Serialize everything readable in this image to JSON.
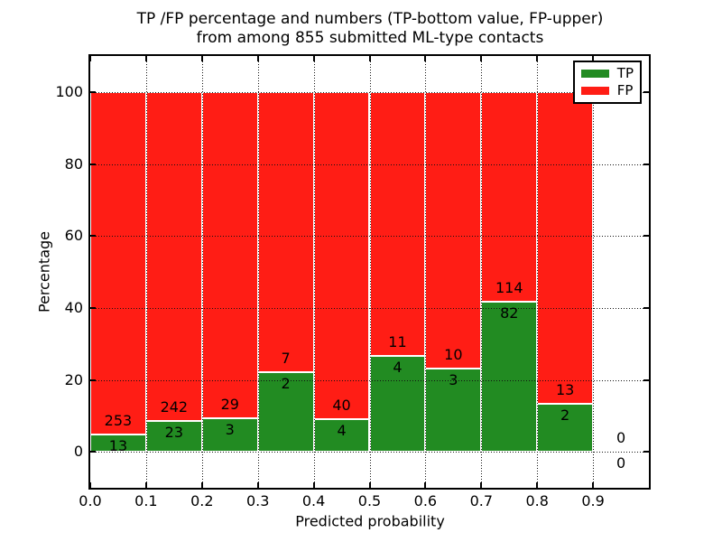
{
  "figure": {
    "title_line1": "TP /FP percentage and numbers (TP-bottom value, FP-upper)",
    "title_line2": "from among 855 submitted ML-type contacts",
    "xlabel": "Predicted probability",
    "ylabel": "Percentage",
    "background_color": "#ffffff"
  },
  "legend": {
    "position": "upper-right",
    "entries": [
      {
        "label": "TP",
        "color": "#228b22"
      },
      {
        "label": "FP",
        "color": "#ff1d15"
      }
    ]
  },
  "chart_data": {
    "type": "bar",
    "stacked": true,
    "normalized_to_percent": 100,
    "title": "TP /FP percentage and numbers (TP-bottom value, FP-upper) from among 855 submitted ML-type contacts",
    "xlabel": "Predicted probability",
    "ylabel": "Percentage",
    "bin_width": 0.1,
    "bin_starts": [
      0.0,
      0.1,
      0.2,
      0.3,
      0.4,
      0.5,
      0.6,
      0.7,
      0.8,
      0.9
    ],
    "series": [
      {
        "name": "TP",
        "color": "#228b22",
        "counts": [
          13,
          23,
          3,
          2,
          4,
          4,
          3,
          82,
          2,
          0
        ]
      },
      {
        "name": "FP",
        "color": "#ff1d15",
        "counts": [
          253,
          242,
          29,
          7,
          40,
          11,
          10,
          114,
          13,
          0
        ]
      }
    ],
    "annotation_rule": "FP count printed above TP/FP boundary, TP count printed below",
    "xlim": [
      0,
      1.0
    ],
    "ylim": [
      -10,
      110
    ],
    "xticks": [
      "0.0",
      "0.1",
      "0.2",
      "0.3",
      "0.4",
      "0.5",
      "0.6",
      "0.7",
      "0.8",
      "0.9"
    ],
    "yticks": [
      0,
      20,
      40,
      60,
      80,
      100
    ],
    "grid": "dotted",
    "bar_edge_color": "#ffffff"
  }
}
